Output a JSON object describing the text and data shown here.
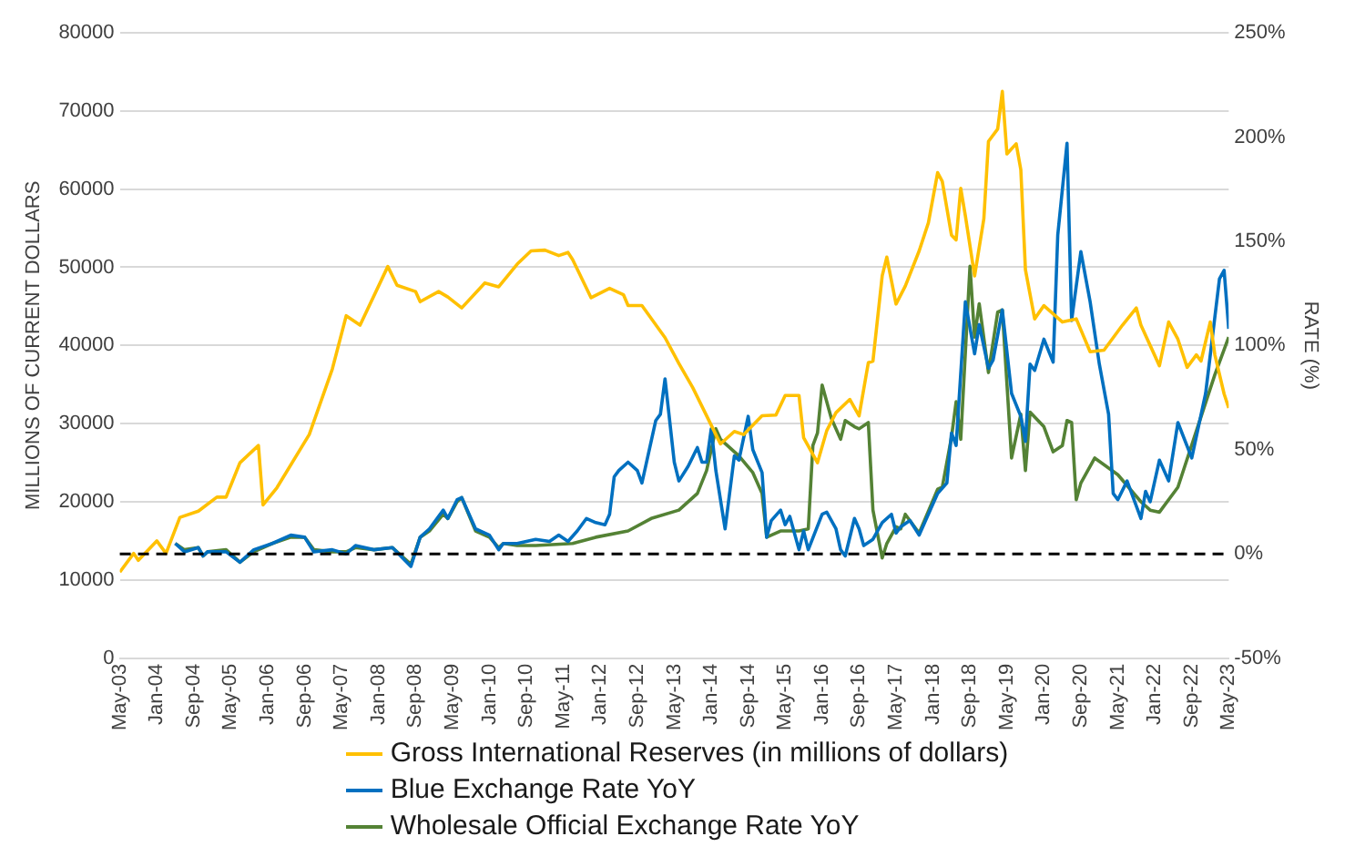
{
  "chart_data": {
    "type": "line",
    "ylabel": "MILLIONS OF CURRENT DOLLARS",
    "y2label": "RATE (%)",
    "xlim": [
      "2003-05",
      "2023-05"
    ],
    "xticks": [
      {
        "value": "2003-05",
        "label": "May-03"
      },
      {
        "value": "2004-01",
        "label": "Jan-04"
      },
      {
        "value": "2004-09",
        "label": "Sep-04"
      },
      {
        "value": "2005-05",
        "label": "May-05"
      },
      {
        "value": "2006-01",
        "label": "Jan-06"
      },
      {
        "value": "2006-09",
        "label": "Sep-06"
      },
      {
        "value": "2007-05",
        "label": "May-07"
      },
      {
        "value": "2008-01",
        "label": "Jan-08"
      },
      {
        "value": "2008-09",
        "label": "Sep-08"
      },
      {
        "value": "2009-05",
        "label": "May-09"
      },
      {
        "value": "2010-01",
        "label": "Jan-10"
      },
      {
        "value": "2010-09",
        "label": "Sep-10"
      },
      {
        "value": "2011-05",
        "label": "May-11"
      },
      {
        "value": "2012-01",
        "label": "Jan-12"
      },
      {
        "value": "2012-09",
        "label": "Sep-12"
      },
      {
        "value": "2013-05",
        "label": "May-13"
      },
      {
        "value": "2014-01",
        "label": "Jan-14"
      },
      {
        "value": "2014-09",
        "label": "Sep-14"
      },
      {
        "value": "2015-05",
        "label": "May-15"
      },
      {
        "value": "2016-01",
        "label": "Jan-16"
      },
      {
        "value": "2016-09",
        "label": "Sep-16"
      },
      {
        "value": "2017-05",
        "label": "May-17"
      },
      {
        "value": "2018-01",
        "label": "Jan-18"
      },
      {
        "value": "2018-09",
        "label": "Sep-18"
      },
      {
        "value": "2019-05",
        "label": "May-19"
      },
      {
        "value": "2020-01",
        "label": "Jan-20"
      },
      {
        "value": "2020-09",
        "label": "Sep-20"
      },
      {
        "value": "2021-05",
        "label": "May-21"
      },
      {
        "value": "2022-01",
        "label": "Jan-22"
      },
      {
        "value": "2022-09",
        "label": "Sep-22"
      },
      {
        "value": "2023-05",
        "label": "May-23"
      }
    ],
    "ylim": [
      0,
      80000
    ],
    "yticks": [
      0,
      10000,
      20000,
      30000,
      40000,
      50000,
      60000,
      70000,
      80000
    ],
    "y2lim": [
      -50,
      250
    ],
    "y2ticks": [
      {
        "value": -50,
        "label": "-50%"
      },
      {
        "value": 0,
        "label": "0%"
      },
      {
        "value": 50,
        "label": "50%"
      },
      {
        "value": 100,
        "label": "100%"
      },
      {
        "value": 150,
        "label": "150%"
      },
      {
        "value": 200,
        "label": "200%"
      },
      {
        "value": 250,
        "label": "250%"
      }
    ],
    "grid": "y",
    "legend": "bottom",
    "marker": "none",
    "ref_lines": [
      {
        "axis": "y2",
        "value": 0,
        "color": "#000000",
        "line_style": "dashed"
      }
    ],
    "series": [
      {
        "name": "Gross International Reserves (in millions of dollars)",
        "color": "#ffc000",
        "x": [
          "2003-05",
          "2003-08",
          "2003-09",
          "2004-01",
          "2004-03",
          "2004-06",
          "2004-10",
          "2005-02",
          "2005-04",
          "2005-07",
          "2005-11",
          "2005-12",
          "2006-03",
          "2006-10",
          "2007-03",
          "2007-06",
          "2007-09",
          "2008-03",
          "2008-05",
          "2008-09",
          "2008-10",
          "2009-02",
          "2009-04",
          "2009-07",
          "2009-12",
          "2010-03",
          "2010-07",
          "2010-10",
          "2011-01",
          "2011-04",
          "2011-06",
          "2011-07",
          "2011-11",
          "2012-03",
          "2012-06",
          "2012-07",
          "2012-10",
          "2013-03",
          "2013-06",
          "2013-09",
          "2014-01",
          "2014-03",
          "2014-06",
          "2014-08",
          "2014-12",
          "2015-03",
          "2015-05",
          "2015-08",
          "2015-09",
          "2015-12",
          "2016-02",
          "2016-04",
          "2016-07",
          "2016-09",
          "2016-11",
          "2016-12",
          "2017-02",
          "2017-03",
          "2017-05",
          "2017-07",
          "2017-10",
          "2017-12",
          "2018-02",
          "2018-03",
          "2018-05",
          "2018-06",
          "2018-07",
          "2018-08",
          "2018-10",
          "2018-12",
          "2019-01",
          "2019-03",
          "2019-04",
          "2019-05",
          "2019-07",
          "2019-08",
          "2019-09",
          "2019-11",
          "2020-01",
          "2020-05",
          "2020-08",
          "2020-11",
          "2021-02",
          "2021-06",
          "2021-09",
          "2021-10",
          "2022-02",
          "2022-04",
          "2022-06",
          "2022-08",
          "2022-10",
          "2022-11",
          "2023-01",
          "2023-02",
          "2023-04",
          "2023-05"
        ],
        "values": [
          11000,
          13400,
          12500,
          15000,
          13400,
          18000,
          18800,
          20600,
          20600,
          25000,
          27200,
          19600,
          21800,
          28600,
          37000,
          43800,
          42600,
          50100,
          47700,
          46900,
          45600,
          46900,
          46200,
          44800,
          48000,
          47500,
          50400,
          52100,
          52200,
          51500,
          51900,
          51000,
          46100,
          47300,
          46500,
          45100,
          45100,
          41000,
          37700,
          34600,
          29800,
          27400,
          29000,
          28600,
          31000,
          31100,
          33600,
          33600,
          28200,
          25000,
          29100,
          31400,
          33100,
          31000,
          37800,
          38000,
          48900,
          51300,
          45300,
          47600,
          52100,
          55700,
          62100,
          61000,
          54100,
          53500,
          60100,
          56600,
          48900,
          56200,
          66100,
          67700,
          72500,
          64500,
          65800,
          62500,
          49700,
          43400,
          45100,
          43000,
          43400,
          39200,
          39400,
          42600,
          44800,
          42600,
          37400,
          43000,
          40800,
          37200,
          38800,
          38000,
          43000,
          38800,
          33800,
          32000
        ]
      },
      {
        "name": "Blue Exchange Rate YoY",
        "color": "#0070c0",
        "axis": "y2",
        "x": [
          "2004-05",
          "2004-07",
          "2004-10",
          "2004-11",
          "2004-12",
          "2005-04",
          "2005-07",
          "2005-10",
          "2006-02",
          "2006-06",
          "2006-09",
          "2006-11",
          "2007-03",
          "2007-06",
          "2007-08",
          "2007-12",
          "2008-04",
          "2008-08",
          "2008-10",
          "2008-12",
          "2009-03",
          "2009-04",
          "2009-06",
          "2009-07",
          "2009-10",
          "2010-01",
          "2010-03",
          "2010-04",
          "2010-07",
          "2010-11",
          "2011-02",
          "2011-04",
          "2011-06",
          "2011-08",
          "2011-10",
          "2011-12",
          "2012-02",
          "2012-03",
          "2012-04",
          "2012-05",
          "2012-07",
          "2012-09",
          "2012-10",
          "2013-01",
          "2013-02",
          "2013-03",
          "2013-05",
          "2013-06",
          "2013-08",
          "2013-10",
          "2013-11",
          "2013-12",
          "2014-01",
          "2014-02",
          "2014-04",
          "2014-06",
          "2014-07",
          "2014-09",
          "2014-10",
          "2014-12",
          "2015-01",
          "2015-02",
          "2015-04",
          "2015-05",
          "2015-06",
          "2015-08",
          "2015-09",
          "2015-10",
          "2016-01",
          "2016-02",
          "2016-04",
          "2016-05",
          "2016-06",
          "2016-08",
          "2016-09",
          "2016-10",
          "2016-12",
          "2017-02",
          "2017-04",
          "2017-05",
          "2017-06",
          "2017-08",
          "2017-10",
          "2018-02",
          "2018-04",
          "2018-05",
          "2018-06",
          "2018-08",
          "2018-10",
          "2018-11",
          "2019-01",
          "2019-02",
          "2019-04",
          "2019-06",
          "2019-08",
          "2019-09",
          "2019-10",
          "2019-11",
          "2020-01",
          "2020-03",
          "2020-04",
          "2020-06",
          "2020-07",
          "2020-09",
          "2020-11",
          "2021-01",
          "2021-03",
          "2021-04",
          "2021-05",
          "2021-07",
          "2021-10",
          "2021-11",
          "2021-12",
          "2022-02",
          "2022-04",
          "2022-06",
          "2022-09",
          "2022-12",
          "2023-03",
          "2023-04",
          "2023-05"
        ],
        "values": [
          5,
          1,
          3,
          -1,
          1,
          1,
          -4,
          2,
          5,
          9,
          8,
          1,
          2,
          0,
          4,
          2,
          3,
          -6,
          8,
          12,
          21,
          17,
          26,
          27,
          12,
          9,
          2,
          5,
          5,
          7,
          6,
          9,
          6,
          11,
          17,
          15,
          14,
          19,
          37,
          40,
          44,
          40,
          34,
          64,
          67,
          84,
          44,
          35,
          42,
          51,
          44,
          44,
          60,
          40,
          12,
          47,
          45,
          66,
          50,
          39,
          8,
          16,
          21,
          14,
          18,
          2,
          11,
          2,
          19,
          20,
          12,
          2,
          -1,
          17,
          12,
          4,
          7,
          15,
          19,
          10,
          13,
          16,
          9,
          29,
          34,
          58,
          52,
          121,
          96,
          110,
          89,
          93,
          117,
          77,
          66,
          54,
          91,
          88,
          103,
          92,
          153,
          197,
          112,
          145,
          121,
          91,
          67,
          29,
          26,
          35,
          17,
          30,
          25,
          45,
          35,
          63,
          46,
          77,
          132,
          136,
          108
        ]
      },
      {
        "name": "Wholesale Official Exchange Rate YoY",
        "color": "#548235",
        "axis": "y2",
        "x": [
          "2004-05",
          "2004-07",
          "2004-10",
          "2004-11",
          "2004-12",
          "2005-04",
          "2005-07",
          "2005-10",
          "2006-02",
          "2006-06",
          "2006-09",
          "2006-11",
          "2007-03",
          "2007-06",
          "2007-08",
          "2007-12",
          "2008-04",
          "2008-08",
          "2008-10",
          "2008-12",
          "2009-03",
          "2009-04",
          "2009-06",
          "2009-07",
          "2009-10",
          "2010-01",
          "2010-03",
          "2010-04",
          "2010-07",
          "2010-11",
          "2011-07",
          "2011-12",
          "2012-07",
          "2012-12",
          "2013-06",
          "2013-10",
          "2013-12",
          "2014-02",
          "2014-03",
          "2014-07",
          "2014-10",
          "2014-12",
          "2015-01",
          "2015-04",
          "2015-08",
          "2015-10",
          "2015-11",
          "2015-12",
          "2016-01",
          "2016-03",
          "2016-05",
          "2016-06",
          "2016-08",
          "2016-09",
          "2016-11",
          "2016-12",
          "2017-02",
          "2017-03",
          "2017-05",
          "2017-06",
          "2017-07",
          "2017-09",
          "2017-10",
          "2018-02",
          "2018-03",
          "2018-05",
          "2018-06",
          "2018-07",
          "2018-09",
          "2018-10",
          "2018-11",
          "2019-01",
          "2019-03",
          "2019-04",
          "2019-06",
          "2019-08",
          "2019-09",
          "2019-10",
          "2020-01",
          "2020-03",
          "2020-05",
          "2020-06",
          "2020-07",
          "2020-08",
          "2020-09",
          "2020-12",
          "2021-05",
          "2021-10",
          "2021-12",
          "2022-02",
          "2022-06",
          "2022-10",
          "2023-02",
          "2023-05"
        ],
        "values": [
          5,
          2,
          3,
          -1,
          1,
          2,
          -4,
          1,
          5,
          8,
          8,
          2,
          1,
          1,
          3,
          2,
          3,
          -5,
          8,
          11,
          19,
          17,
          25,
          27,
          11,
          8,
          3,
          5,
          4,
          4,
          5,
          8,
          11,
          17,
          21,
          29,
          40,
          60,
          55,
          47,
          39,
          29,
          8,
          11,
          11,
          12,
          52,
          58,
          81,
          65,
          55,
          64,
          61,
          60,
          63,
          21,
          -2,
          5,
          13,
          12,
          19,
          13,
          10,
          31,
          32,
          56,
          73,
          55,
          138,
          104,
          120,
          87,
          116,
          117,
          46,
          67,
          40,
          68,
          61,
          49,
          52,
          64,
          63,
          26,
          34,
          46,
          38,
          25,
          21,
          20,
          32,
          59,
          86,
          104
        ]
      }
    ]
  }
}
